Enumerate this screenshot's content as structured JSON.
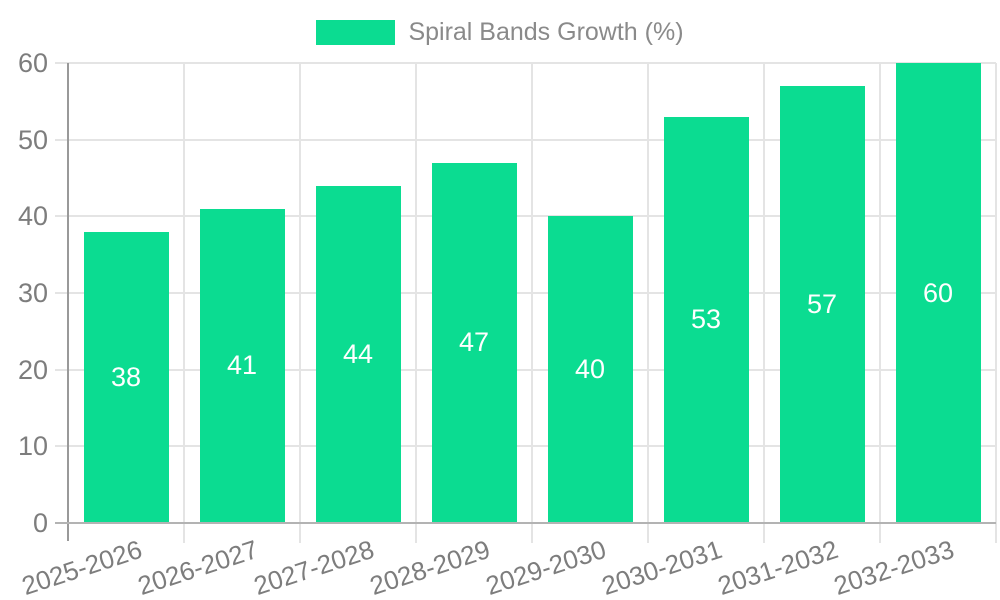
{
  "chart_data": {
    "type": "bar",
    "title": "Spiral Bands Growth (%)",
    "categories": [
      "2025-2026",
      "2026-2027",
      "2027-2028",
      "2028-2029",
      "2029-2030",
      "2030-2031",
      "2031-2032",
      "2032-2033"
    ],
    "values": [
      38,
      41,
      44,
      47,
      40,
      53,
      57,
      60
    ],
    "xlabel": "",
    "ylabel": "",
    "ylim": [
      0,
      60
    ],
    "yticks": [
      0,
      10,
      20,
      30,
      40,
      50,
      60
    ],
    "grid": true,
    "legend_position": "top-center",
    "value_labels_inside_bars": true,
    "bar_color": "#0bdc91",
    "value_label_color": "#ffffff",
    "axis_text_color": "#7d7d7d",
    "legend_text_color": "#8a8a8a",
    "gridline_color": "#e4e4e4",
    "y_axis_line_color": "#999999",
    "x_axis_line_color": "#b3b3b3"
  }
}
